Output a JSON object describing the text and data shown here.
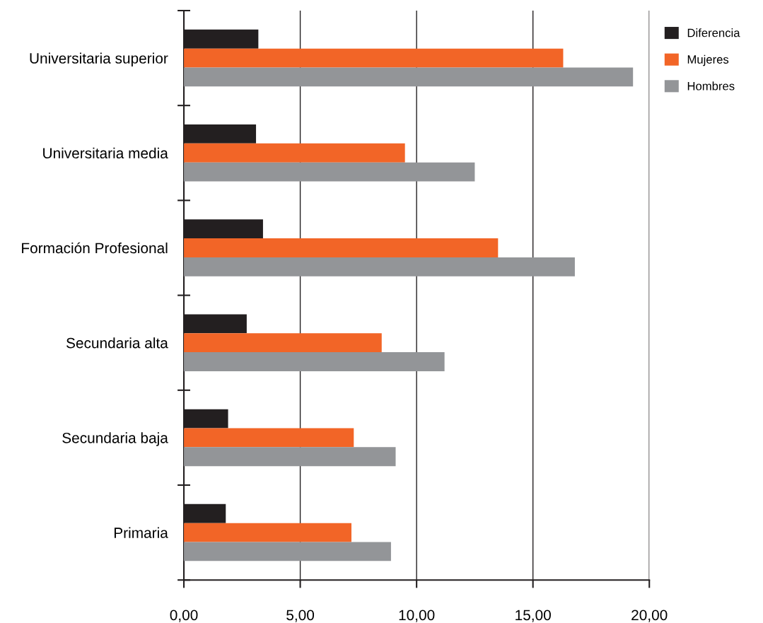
{
  "chart_data": {
    "type": "bar",
    "orientation": "horizontal",
    "categories": [
      "Universitaria superior",
      "Universitaria media",
      "Formación Profesional",
      "Secundaria alta",
      "Secundaria baja",
      "Primaria"
    ],
    "series": [
      {
        "name": "Diferencia",
        "color": "#231f20",
        "values": [
          3.2,
          3.1,
          3.4,
          2.7,
          1.9,
          1.8
        ]
      },
      {
        "name": "Mujeres",
        "color": "#f26527",
        "values": [
          16.3,
          9.5,
          13.5,
          8.5,
          7.3,
          7.2
        ]
      },
      {
        "name": "Hombres",
        "color": "#939598",
        "values": [
          19.3,
          12.5,
          16.8,
          11.2,
          9.1,
          8.9
        ]
      }
    ],
    "xlim": [
      0,
      20
    ],
    "xticks": [
      {
        "value": 0,
        "label": "0,00"
      },
      {
        "value": 5,
        "label": "5,00"
      },
      {
        "value": 10,
        "label": "10,00"
      },
      {
        "value": 15,
        "label": "15,00"
      },
      {
        "value": 20,
        "label": "20,00"
      }
    ],
    "grid": "x",
    "legend": "top right"
  }
}
